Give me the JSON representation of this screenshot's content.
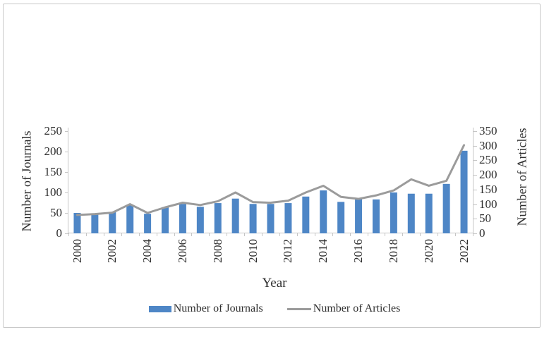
{
  "figure": {
    "background_color": "#ffffff",
    "frame_border_color": "#c9c9c9",
    "axis_line_color": "#c6c6c6",
    "text_color": "#2f2f2f"
  },
  "chart_data": {
    "type": "bar+line",
    "title": "",
    "categories": [
      "2000",
      "2001",
      "2002",
      "2003",
      "2004",
      "2005",
      "2006",
      "2007",
      "2008",
      "2009",
      "2010",
      "2011",
      "2012",
      "2013",
      "2014",
      "2015",
      "2016",
      "2017",
      "2018",
      "2019",
      "2020",
      "2021",
      "2022"
    ],
    "series": [
      {
        "name": "Number of Journals",
        "chart_type": "bar",
        "y_axis": "left",
        "color": "#4e86c6",
        "values": [
          50,
          49,
          52,
          70,
          48,
          64,
          72,
          65,
          74,
          85,
          72,
          72,
          74,
          90,
          105,
          77,
          85,
          83,
          100,
          97,
          97,
          121,
          202
        ]
      },
      {
        "name": "Number of Articles",
        "chart_type": "line",
        "y_axis": "right",
        "color": "#9b9b9b",
        "values": [
          63,
          66,
          71,
          100,
          70,
          89,
          105,
          97,
          110,
          140,
          107,
          105,
          112,
          140,
          163,
          125,
          118,
          130,
          147,
          185,
          163,
          180,
          302
        ]
      }
    ],
    "left_axis": {
      "title": "Number of Journals",
      "min": 0,
      "max": 250,
      "tick_step": 50,
      "ticks": [
        0,
        50,
        100,
        150,
        200,
        250
      ]
    },
    "right_axis": {
      "title": "Number of Articles",
      "min": 0,
      "max": 350,
      "tick_step": 50,
      "ticks": [
        0,
        50,
        100,
        150,
        200,
        250,
        300,
        350
      ]
    },
    "x_axis": {
      "title": "Year",
      "visible_tick_labels": [
        "2000",
        "2002",
        "2004",
        "2006",
        "2008",
        "2010",
        "2012",
        "2014",
        "2016",
        "2018",
        "2020",
        "2022"
      ]
    },
    "grid": false,
    "legend": {
      "position": "bottom",
      "entries": [
        {
          "label": "Number of Journals",
          "swatch": "bar",
          "color": "#4e86c6"
        },
        {
          "label": "Number of Articles",
          "swatch": "line",
          "color": "#9b9b9b"
        }
      ]
    }
  }
}
